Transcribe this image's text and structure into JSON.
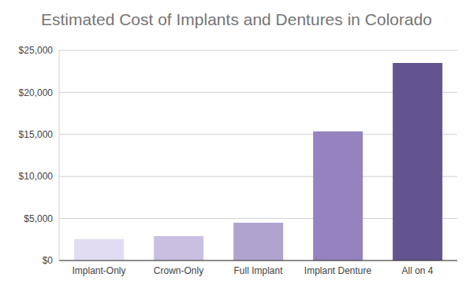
{
  "chart_data": {
    "type": "bar",
    "title": "Estimated Cost of Implants and Dentures in Colorado",
    "categories": [
      "Implant-Only",
      "Crown-Only",
      "Full Implant",
      "Implant Denture",
      "All on 4"
    ],
    "values": [
      2550,
      2900,
      4500,
      15350,
      23500
    ],
    "colors": [
      "#e1dcf2",
      "#c9bfe1",
      "#b0a3d0",
      "#9483be",
      "#63548f"
    ],
    "ylim": [
      0,
      25000
    ],
    "yticks": [
      {
        "value": 0,
        "label": "$0"
      },
      {
        "value": 5000,
        "label": "$5,000"
      },
      {
        "value": 10000,
        "label": "$10,000"
      },
      {
        "value": 15000,
        "label": "$15,000"
      },
      {
        "value": 20000,
        "label": "$20,000"
      },
      {
        "value": 25000,
        "label": "$25,000"
      }
    ],
    "grid": true
  }
}
